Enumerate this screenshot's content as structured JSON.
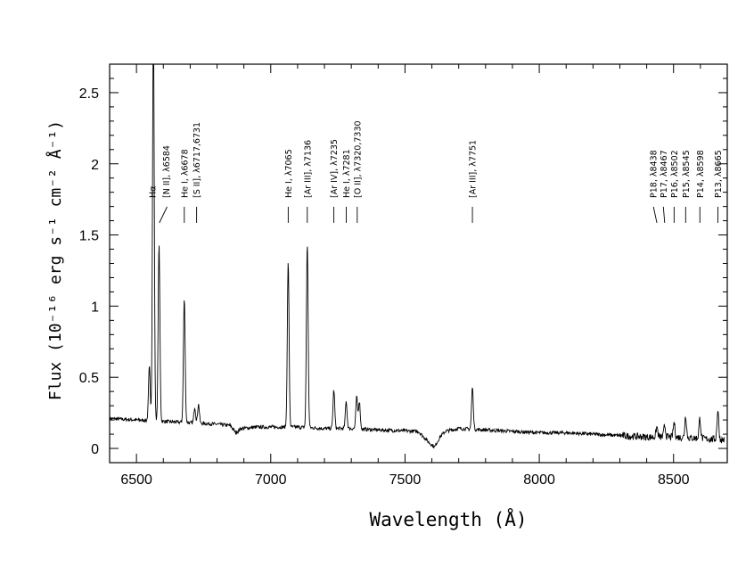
{
  "chart_data": {
    "type": "line",
    "title": "",
    "xlabel": "Wavelength (Å)",
    "ylabel": "Flux (10⁻¹⁶ erg s⁻¹ cm⁻² Å⁻¹)",
    "xlim": [
      6400,
      8700
    ],
    "ylim": [
      -0.1,
      2.7
    ],
    "xticks": [
      6500,
      7000,
      7500,
      8000,
      8500
    ],
    "xtick_labels": [
      "6500",
      "7000",
      "7500",
      "8000",
      "8500"
    ],
    "yticks": [
      0,
      0.5,
      1,
      1.5,
      2,
      2.5
    ],
    "ytick_labels": [
      "0",
      "0.5",
      "1",
      "1.5",
      "2",
      "2.5"
    ],
    "continuum": [
      [
        6400,
        0.21
      ],
      [
        6500,
        0.2
      ],
      [
        6600,
        0.19
      ],
      [
        6700,
        0.18
      ],
      [
        6800,
        0.17
      ],
      [
        6850,
        0.16
      ],
      [
        6870,
        0.11
      ],
      [
        6890,
        0.14
      ],
      [
        6950,
        0.15
      ],
      [
        7000,
        0.15
      ],
      [
        7100,
        0.15
      ],
      [
        7200,
        0.14
      ],
      [
        7300,
        0.14
      ],
      [
        7400,
        0.13
      ],
      [
        7550,
        0.12
      ],
      [
        7590,
        0.04
      ],
      [
        7610,
        0.01
      ],
      [
        7630,
        0.08
      ],
      [
        7650,
        0.12
      ],
      [
        7700,
        0.14
      ],
      [
        7800,
        0.13
      ],
      [
        7900,
        0.12
      ],
      [
        8000,
        0.11
      ],
      [
        8100,
        0.11
      ],
      [
        8200,
        0.1
      ],
      [
        8300,
        0.09
      ],
      [
        8400,
        0.08
      ],
      [
        8500,
        0.08
      ],
      [
        8600,
        0.07
      ],
      [
        8690,
        0.06
      ]
    ],
    "emission_lines": [
      {
        "wavelength": 6548,
        "peak": 0.57
      },
      {
        "wavelength": 6563,
        "peak": 3.0
      },
      {
        "wavelength": 6584,
        "peak": 1.43
      },
      {
        "wavelength": 6678,
        "peak": 1.05
      },
      {
        "wavelength": 6717,
        "peak": 0.29
      },
      {
        "wavelength": 6731,
        "peak": 0.31
      },
      {
        "wavelength": 7065,
        "peak": 1.31
      },
      {
        "wavelength": 7136,
        "peak": 1.44
      },
      {
        "wavelength": 7235,
        "peak": 0.41
      },
      {
        "wavelength": 7281,
        "peak": 0.33
      },
      {
        "wavelength": 7320,
        "peak": 0.36
      },
      {
        "wavelength": 7330,
        "peak": 0.33
      },
      {
        "wavelength": 7751,
        "peak": 0.43
      },
      {
        "wavelength": 8438,
        "peak": 0.15
      },
      {
        "wavelength": 8467,
        "peak": 0.16
      },
      {
        "wavelength": 8502,
        "peak": 0.18
      },
      {
        "wavelength": 8545,
        "peak": 0.23
      },
      {
        "wavelength": 8598,
        "peak": 0.21
      },
      {
        "wavelength": 8665,
        "peak": 0.27
      }
    ],
    "annotations": [
      {
        "label": "Hα",
        "text_x": 6560,
        "tick_x": null
      },
      {
        "label": "[N II], λ6584",
        "text_x": 6610,
        "tick_x": [
          6585,
          6614
        ]
      },
      {
        "label": "He I, λ6678",
        "text_x": 6678,
        "tick_x": [
          6678,
          6678
        ]
      },
      {
        "label": "[S II], λ6717,6731",
        "text_x": 6724,
        "tick_x": [
          6724,
          6724
        ]
      },
      {
        "label": "He I, λ7065",
        "text_x": 7065,
        "tick_x": [
          7065,
          7065
        ]
      },
      {
        "label": "[Ar III], λ7136",
        "text_x": 7136,
        "tick_x": [
          7136,
          7136
        ]
      },
      {
        "label": "[Ar IV], λ7235",
        "text_x": 7235,
        "tick_x": [
          7235,
          7235
        ]
      },
      {
        "label": "He I, λ7281",
        "text_x": 7281,
        "tick_x": [
          7281,
          7281
        ]
      },
      {
        "label": "[O II], λ7320,7330",
        "text_x": 7322,
        "tick_x": [
          7322,
          7322
        ]
      },
      {
        "label": "[Ar III], λ7751",
        "text_x": 7751,
        "tick_x": [
          7751,
          7751
        ]
      },
      {
        "label": "P18, λ8438",
        "text_x": 8425,
        "tick_x": [
          8438,
          8425
        ]
      },
      {
        "label": "P17, λ8467",
        "text_x": 8462,
        "tick_x": [
          8467,
          8462
        ]
      },
      {
        "label": "P16, λ8502",
        "text_x": 8502,
        "tick_x": [
          8502,
          8502
        ]
      },
      {
        "label": "P15, λ8545",
        "text_x": 8545,
        "tick_x": [
          8545,
          8545
        ]
      },
      {
        "label": "P14, λ8598",
        "text_x": 8598,
        "tick_x": [
          8598,
          8598
        ]
      },
      {
        "label": "P13, λ8665",
        "text_x": 8665,
        "tick_x": [
          8665,
          8665
        ]
      }
    ]
  }
}
